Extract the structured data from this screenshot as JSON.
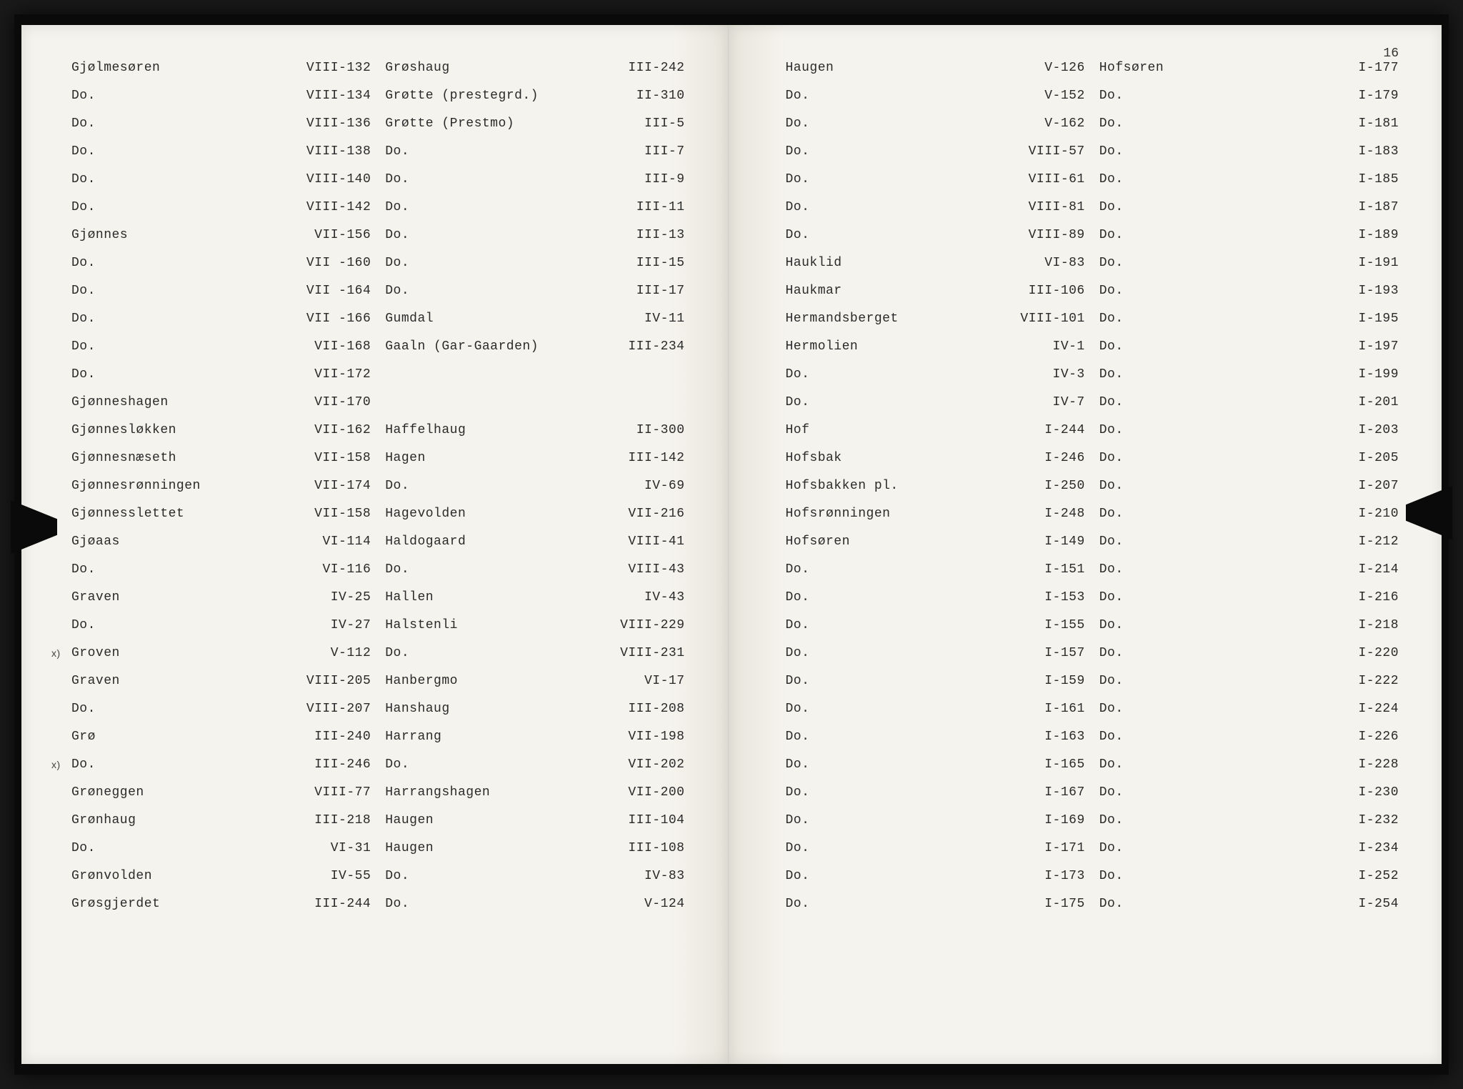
{
  "page_number": "16",
  "left_page": {
    "col1": [
      {
        "place": "Gjølmesøren",
        "ref": "VIII-132"
      },
      {
        "place": "Do.",
        "ref": "VIII-134"
      },
      {
        "place": "Do.",
        "ref": "VIII-136"
      },
      {
        "place": "Do.",
        "ref": "VIII-138"
      },
      {
        "place": "Do.",
        "ref": "VIII-140"
      },
      {
        "place": "Do.",
        "ref": "VIII-142"
      },
      {
        "place": "Gjønnes",
        "ref": "VII-156"
      },
      {
        "place": "Do.",
        "ref": "VII -160"
      },
      {
        "place": "Do.",
        "ref": "VII -164"
      },
      {
        "place": "Do.",
        "ref": "VII -166"
      },
      {
        "place": "Do.",
        "ref": "VII-168"
      },
      {
        "place": "Do.",
        "ref": "VII-172"
      },
      {
        "place": "Gjønneshagen",
        "ref": "VII-170"
      },
      {
        "place": "Gjønnesløkken",
        "ref": "VII-162"
      },
      {
        "place": "Gjønnesnæseth",
        "ref": "VII-158"
      },
      {
        "place": "Gjønnesrønningen",
        "ref": "VII-174"
      },
      {
        "place": "Gjønnesslettet",
        "ref": "VII-158"
      },
      {
        "place": "Gjøaas",
        "ref": "VI-114"
      },
      {
        "place": "Do.",
        "ref": "VI-116"
      },
      {
        "place": "Graven",
        "ref": "IV-25"
      },
      {
        "place": "Do.",
        "ref": "IV-27"
      },
      {
        "place": "Groven",
        "ref": "V-112",
        "note": "x)"
      },
      {
        "place": "Graven",
        "ref": "VIII-205"
      },
      {
        "place": "Do.",
        "ref": "VIII-207"
      },
      {
        "place": "Grø",
        "ref": "III-240"
      },
      {
        "place": "Do.",
        "ref": "III-246",
        "note": "x)"
      },
      {
        "place": "Grøneggen",
        "ref": "VIII-77"
      },
      {
        "place": "Grønhaug",
        "ref": "III-218"
      },
      {
        "place": "Do.",
        "ref": "VI-31"
      },
      {
        "place": "Grønvolden",
        "ref": "IV-55"
      },
      {
        "place": "Grøsgjerdet",
        "ref": "III-244"
      }
    ],
    "col2": [
      {
        "place": "Grøshaug",
        "ref": "III-242"
      },
      {
        "place": "Grøtte (prestegrd.)",
        "ref": "II-310"
      },
      {
        "place": "Grøtte (Prestmo)",
        "ref": "III-5"
      },
      {
        "place": "Do.",
        "ref": "III-7"
      },
      {
        "place": "Do.",
        "ref": "III-9"
      },
      {
        "place": "Do.",
        "ref": "III-11"
      },
      {
        "place": "Do.",
        "ref": "III-13"
      },
      {
        "place": "Do.",
        "ref": "III-15"
      },
      {
        "place": "Do.",
        "ref": "III-17"
      },
      {
        "place": "Gumdal",
        "ref": "IV-11"
      },
      {
        "place": "Gaaln (Gar-Gaarden)",
        "ref": "III-234"
      },
      {
        "place": "",
        "ref": ""
      },
      {
        "place": "",
        "ref": ""
      },
      {
        "place": "Haffelhaug",
        "ref": "II-300"
      },
      {
        "place": "Hagen",
        "ref": "III-142"
      },
      {
        "place": "Do.",
        "ref": "IV-69"
      },
      {
        "place": "Hagevolden",
        "ref": "VII-216"
      },
      {
        "place": "Haldogaard",
        "ref": "VIII-41"
      },
      {
        "place": "Do.",
        "ref": "VIII-43"
      },
      {
        "place": "Hallen",
        "ref": "IV-43"
      },
      {
        "place": "Halstenli",
        "ref": "VIII-229"
      },
      {
        "place": "Do.",
        "ref": "VIII-231"
      },
      {
        "place": "Hanbergmo",
        "ref": "VI-17"
      },
      {
        "place": "Hanshaug",
        "ref": "III-208"
      },
      {
        "place": "Harrang",
        "ref": "VII-198"
      },
      {
        "place": "Do.",
        "ref": "VII-202"
      },
      {
        "place": "Harrangshagen",
        "ref": "VII-200"
      },
      {
        "place": "Haugen",
        "ref": "III-104"
      },
      {
        "place": "Haugen",
        "ref": "III-108"
      },
      {
        "place": "Do.",
        "ref": "IV-83"
      },
      {
        "place": "Do.",
        "ref": "V-124"
      }
    ]
  },
  "right_page": {
    "col1": [
      {
        "place": "Haugen",
        "ref": "V-126"
      },
      {
        "place": "Do.",
        "ref": "V-152"
      },
      {
        "place": "Do.",
        "ref": "V-162"
      },
      {
        "place": "Do.",
        "ref": "VIII-57"
      },
      {
        "place": "Do.",
        "ref": "VIII-61"
      },
      {
        "place": "Do.",
        "ref": "VIII-81"
      },
      {
        "place": "Do.",
        "ref": "VIII-89"
      },
      {
        "place": "Hauklid",
        "ref": "VI-83"
      },
      {
        "place": "Haukmar",
        "ref": "III-106"
      },
      {
        "place": "Hermandsberget",
        "ref": "VIII-101"
      },
      {
        "place": "Hermolien",
        "ref": "IV-1"
      },
      {
        "place": "Do.",
        "ref": "IV-3"
      },
      {
        "place": "Do.",
        "ref": "IV-7"
      },
      {
        "place": "Hof",
        "ref": "I-244"
      },
      {
        "place": "Hofsbak",
        "ref": "I-246"
      },
      {
        "place": "Hofsbakken pl.",
        "ref": "I-250"
      },
      {
        "place": "Hofsrønningen",
        "ref": "I-248"
      },
      {
        "place": "Hofsøren",
        "ref": "I-149"
      },
      {
        "place": "Do.",
        "ref": "I-151"
      },
      {
        "place": "Do.",
        "ref": "I-153"
      },
      {
        "place": "Do.",
        "ref": "I-155"
      },
      {
        "place": "Do.",
        "ref": "I-157"
      },
      {
        "place": "Do.",
        "ref": "I-159"
      },
      {
        "place": "Do.",
        "ref": "I-161"
      },
      {
        "place": "Do.",
        "ref": "I-163"
      },
      {
        "place": "Do.",
        "ref": "I-165"
      },
      {
        "place": "Do.",
        "ref": "I-167"
      },
      {
        "place": "Do.",
        "ref": "I-169"
      },
      {
        "place": "Do.",
        "ref": "I-171"
      },
      {
        "place": "Do.",
        "ref": "I-173"
      },
      {
        "place": "Do.",
        "ref": "I-175"
      }
    ],
    "col2": [
      {
        "place": "Hofsøren",
        "ref": "I-177"
      },
      {
        "place": "Do.",
        "ref": "I-179"
      },
      {
        "place": "Do.",
        "ref": "I-181"
      },
      {
        "place": "Do.",
        "ref": "I-183"
      },
      {
        "place": "Do.",
        "ref": "I-185"
      },
      {
        "place": "Do.",
        "ref": "I-187"
      },
      {
        "place": "Do.",
        "ref": "I-189"
      },
      {
        "place": "Do.",
        "ref": "I-191"
      },
      {
        "place": "Do.",
        "ref": "I-193"
      },
      {
        "place": "Do.",
        "ref": "I-195"
      },
      {
        "place": "Do.",
        "ref": "I-197"
      },
      {
        "place": "Do.",
        "ref": "I-199"
      },
      {
        "place": "Do.",
        "ref": "I-201"
      },
      {
        "place": "Do.",
        "ref": "I-203"
      },
      {
        "place": "Do.",
        "ref": "I-205"
      },
      {
        "place": "Do.",
        "ref": "I-207"
      },
      {
        "place": "Do.",
        "ref": "I-210"
      },
      {
        "place": "Do.",
        "ref": "I-212"
      },
      {
        "place": "Do.",
        "ref": "I-214"
      },
      {
        "place": "Do.",
        "ref": "I-216"
      },
      {
        "place": "Do.",
        "ref": "I-218"
      },
      {
        "place": "Do.",
        "ref": "I-220"
      },
      {
        "place": "Do.",
        "ref": "I-222"
      },
      {
        "place": "Do.",
        "ref": "I-224"
      },
      {
        "place": "Do.",
        "ref": "I-226"
      },
      {
        "place": "Do.",
        "ref": "I-228"
      },
      {
        "place": "Do.",
        "ref": "I-230"
      },
      {
        "place": "Do.",
        "ref": "I-232"
      },
      {
        "place": "Do.",
        "ref": "I-234"
      },
      {
        "place": "Do.",
        "ref": "I-252"
      },
      {
        "place": "Do.",
        "ref": "I-254"
      }
    ]
  }
}
